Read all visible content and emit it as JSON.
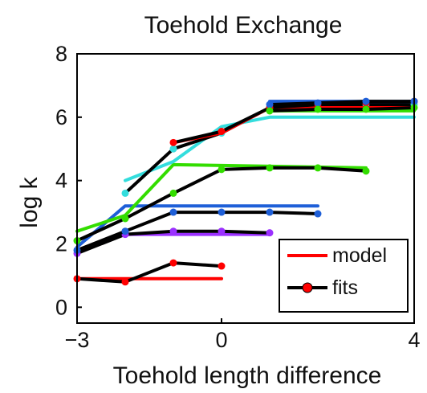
{
  "chart_data": {
    "type": "line",
    "title": "Toehold Exchange",
    "xlabel": "Toehold length difference",
    "ylabel": "log k",
    "xlim": [
      -3,
      4
    ],
    "ylim": [
      -0.5,
      8
    ],
    "xticks": [
      -3,
      0,
      4
    ],
    "yticks": [
      0,
      2,
      4,
      6,
      8
    ],
    "grid": false,
    "legend": {
      "placement": "bottom-right",
      "entries": [
        {
          "label": "model",
          "color": "#ff0000",
          "marker": false
        },
        {
          "label": "fits",
          "color": "#000000",
          "marker": true,
          "marker_color": "#ff0000"
        }
      ]
    },
    "series": [
      {
        "color": "#ff0000",
        "model_x": [
          -3,
          0
        ],
        "model_y": [
          0.9,
          0.9
        ],
        "fit_x": [
          -3,
          -2,
          -1,
          0
        ],
        "fit_y": [
          0.9,
          0.8,
          1.4,
          1.3
        ]
      },
      {
        "color": "#9b30ff",
        "model_x": [
          -3,
          -2,
          1
        ],
        "model_y": [
          1.8,
          2.3,
          2.3
        ],
        "fit_x": [
          -3,
          -2,
          -1,
          0,
          1
        ],
        "fit_y": [
          1.7,
          2.3,
          2.4,
          2.4,
          2.35
        ]
      },
      {
        "color": "#1e5fd8",
        "model_x": [
          -3,
          -2,
          2
        ],
        "model_y": [
          1.9,
          3.2,
          3.2
        ],
        "fit_x": [
          -3,
          -2,
          -1,
          0,
          1,
          2
        ],
        "fit_y": [
          1.8,
          2.4,
          3.0,
          3.0,
          3.0,
          2.95
        ]
      },
      {
        "color": "#33dd00",
        "model_x": [
          -3,
          -2,
          -1,
          3
        ],
        "model_y": [
          2.4,
          2.9,
          4.5,
          4.4
        ],
        "fit_x": [
          -3,
          -2,
          -1,
          0,
          1,
          2,
          3
        ],
        "fit_y": [
          2.1,
          2.8,
          3.6,
          4.35,
          4.4,
          4.4,
          4.3
        ]
      },
      {
        "color": "#33dddd",
        "model_x": [
          -2,
          -1,
          0,
          1,
          4
        ],
        "model_y": [
          4.0,
          4.6,
          5.7,
          6.0,
          6.0
        ],
        "fit_x": [
          -2,
          -1,
          0,
          1,
          2,
          3,
          4
        ],
        "fit_y": [
          3.6,
          5.0,
          5.5,
          6.3,
          6.4,
          6.4,
          6.4
        ]
      },
      {
        "color": "#ff0000",
        "model_x": [
          -1,
          0,
          1,
          4
        ],
        "model_y": [
          5.2,
          5.5,
          6.3,
          6.3
        ],
        "fit_x": [
          -1,
          0,
          1,
          2,
          3,
          4
        ],
        "fit_y": [
          5.2,
          5.55,
          6.3,
          6.4,
          6.45,
          6.5
        ]
      },
      {
        "color": "#1e5fd8",
        "model_x": [
          1,
          4
        ],
        "model_y": [
          6.5,
          6.5
        ],
        "fit_x": [
          1,
          2,
          3,
          4
        ],
        "fit_y": [
          6.4,
          6.45,
          6.5,
          6.5
        ]
      },
      {
        "color": "#33dd00",
        "model_x": [
          1,
          4
        ],
        "model_y": [
          6.2,
          6.2
        ],
        "fit_x": [
          1,
          2,
          3,
          4
        ],
        "fit_y": [
          6.2,
          6.25,
          6.25,
          6.3
        ]
      }
    ]
  }
}
